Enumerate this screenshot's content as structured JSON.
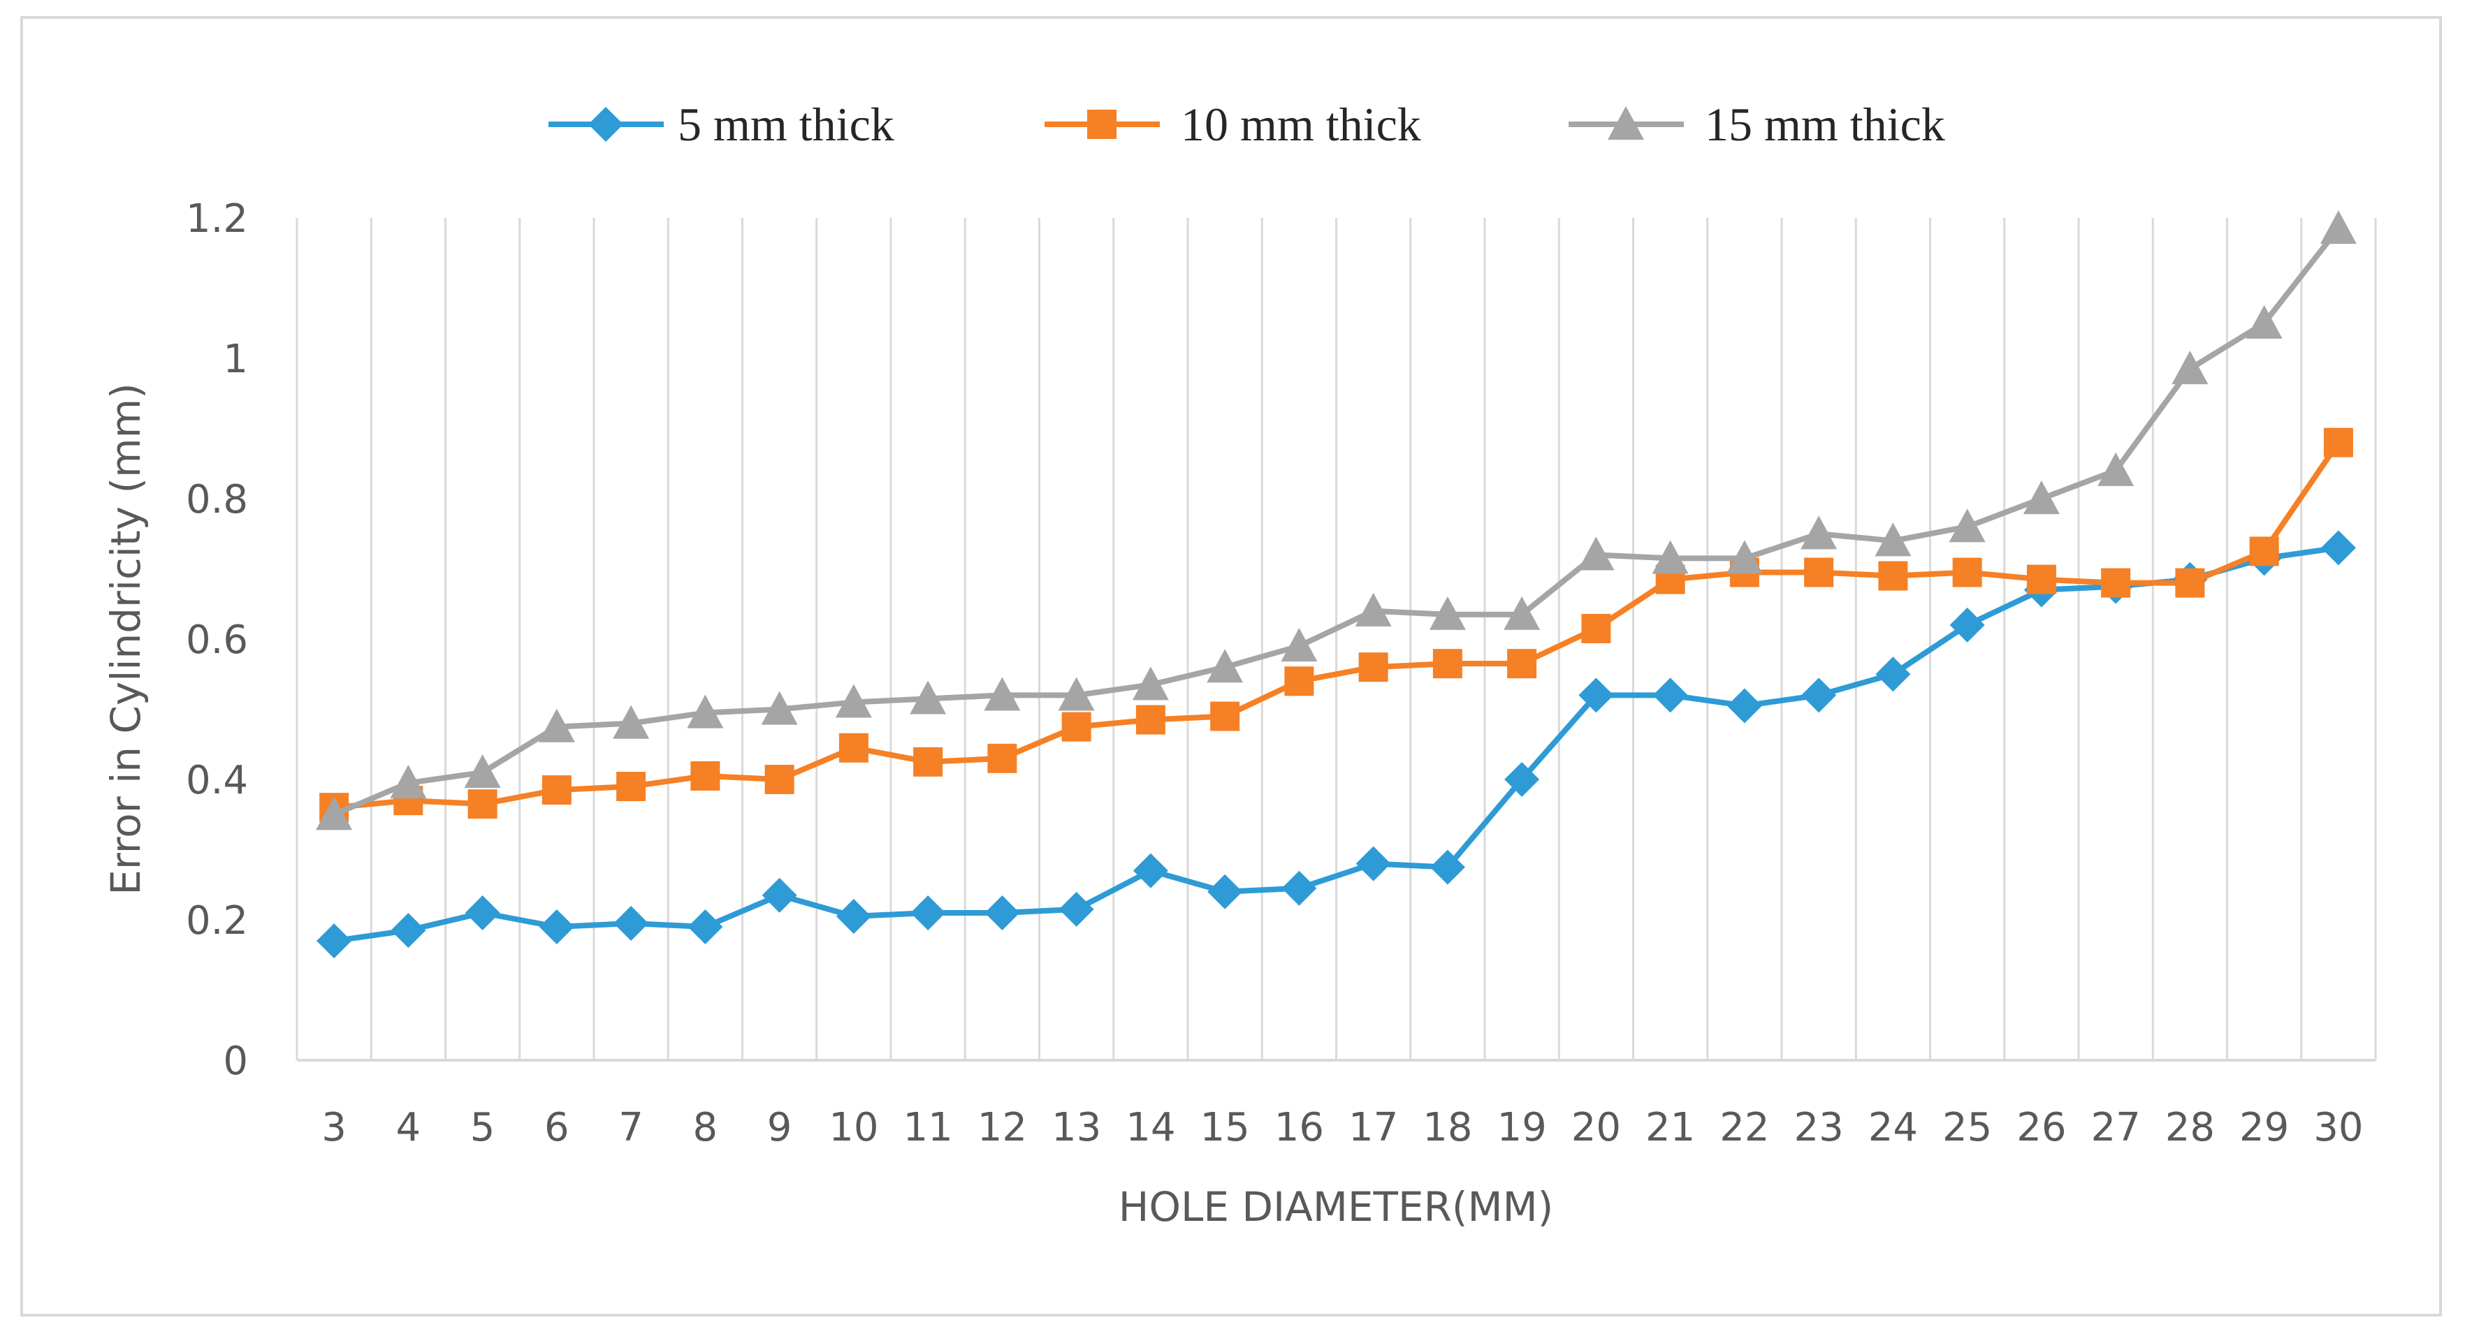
{
  "chart_data": {
    "type": "line",
    "title": "",
    "xlabel": "HOLE DIAMETER(MM)",
    "ylabel": "Error in Cylindricity (mm)",
    "categories": [
      "3",
      "4",
      "5",
      "6",
      "7",
      "8",
      "9",
      "10",
      "11",
      "12",
      "13",
      "14",
      "15",
      "16",
      "17",
      "18",
      "19",
      "20",
      "21",
      "22",
      "23",
      "24",
      "25",
      "26",
      "27",
      "28",
      "29",
      "30"
    ],
    "ylim": [
      0,
      1.2
    ],
    "yticks": [
      0,
      0.2,
      0.4,
      0.6,
      0.8,
      1,
      1.2
    ],
    "ytick_labels": [
      "0",
      "0.2",
      "0.4",
      "0.6",
      "0.8",
      "1",
      "1.2"
    ],
    "grid": "vertical",
    "legend_position": "top-center",
    "series": [
      {
        "name": "5 mm thick",
        "marker": "diamond",
        "color": "#2e9bd6",
        "values": [
          0.17,
          0.185,
          0.21,
          0.19,
          0.195,
          0.19,
          0.235,
          0.205,
          0.21,
          0.21,
          0.215,
          0.27,
          0.24,
          0.245,
          0.28,
          0.275,
          0.4,
          0.52,
          0.52,
          0.505,
          0.52,
          0.55,
          0.62,
          0.67,
          0.675,
          0.685,
          0.715,
          0.73
        ]
      },
      {
        "name": "10 mm thick",
        "marker": "square",
        "color": "#f58025",
        "values": [
          0.36,
          0.37,
          0.365,
          0.385,
          0.39,
          0.405,
          0.4,
          0.445,
          0.425,
          0.43,
          0.475,
          0.485,
          0.49,
          0.54,
          0.56,
          0.565,
          0.565,
          0.615,
          0.685,
          0.695,
          0.695,
          0.69,
          0.695,
          0.685,
          0.68,
          0.68,
          0.725,
          0.88
        ]
      },
      {
        "name": "15 mm thick",
        "marker": "triangle",
        "color": "#a5a5a5",
        "values": [
          0.35,
          0.395,
          0.41,
          0.475,
          0.48,
          0.495,
          0.5,
          0.51,
          0.515,
          0.52,
          0.52,
          0.535,
          0.56,
          0.59,
          0.64,
          0.635,
          0.635,
          0.72,
          0.715,
          0.715,
          0.75,
          0.74,
          0.76,
          0.8,
          0.84,
          0.985,
          1.05,
          1.185
        ]
      }
    ]
  }
}
